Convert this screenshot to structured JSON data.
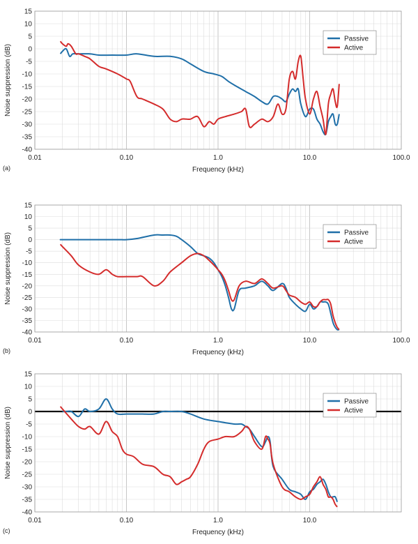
{
  "chart_data": [
    {
      "panel_label": "(a)",
      "type": "line",
      "xscale": "log",
      "xlabel": "Frequency (kHz)",
      "ylabel": "Noise suppression (dB)",
      "xlim": [
        0.01,
        100.0
      ],
      "ylim": [
        -40,
        15
      ],
      "xticks": [
        "0.01",
        "0.10",
        "1.0",
        "10.0",
        "100.0"
      ],
      "yticks": [
        "15",
        "10",
        "5",
        "0",
        "-5",
        "-10",
        "-15",
        "-20",
        "-25",
        "-30",
        "-35",
        "-40"
      ],
      "legend": {
        "position": "top-right",
        "entries": [
          "Passive",
          "Active"
        ]
      },
      "series": [
        {
          "name": "Passive",
          "color": "#1f6fa8",
          "x": [
            0.019,
            0.02,
            0.022,
            0.024,
            0.026,
            0.03,
            0.04,
            0.05,
            0.07,
            0.1,
            0.13,
            0.2,
            0.3,
            0.4,
            0.5,
            0.7,
            0.9,
            1.1,
            1.3,
            1.6,
            2.0,
            2.5,
            3.0,
            3.5,
            4.0,
            4.5,
            5.0,
            5.5,
            6.0,
            6.5,
            7.0,
            7.5,
            8.0,
            9.0,
            10.0,
            11.0,
            12.0,
            13.0,
            14.0,
            15.0,
            16.0,
            17.0,
            18.0,
            19.0,
            20.0,
            21.0
          ],
          "y": [
            -2,
            -1,
            0,
            -3,
            -2,
            -2,
            -2,
            -2.5,
            -2.5,
            -2.5,
            -2,
            -3,
            -3,
            -4,
            -6,
            -9,
            -10,
            -11,
            -13,
            -15,
            -17,
            -19,
            -21,
            -22,
            -19,
            -19,
            -20,
            -21,
            -18,
            -16,
            -17,
            -16,
            -22,
            -27,
            -24,
            -24,
            -28,
            -30,
            -33,
            -34,
            -29,
            -27,
            -26,
            -30,
            -30,
            -26
          ]
        },
        {
          "name": "Active",
          "color": "#d42b2b",
          "x": [
            0.019,
            0.02,
            0.022,
            0.023,
            0.025,
            0.028,
            0.03,
            0.035,
            0.04,
            0.05,
            0.06,
            0.08,
            0.1,
            0.11,
            0.13,
            0.15,
            0.2,
            0.25,
            0.3,
            0.35,
            0.4,
            0.45,
            0.5,
            0.6,
            0.7,
            0.8,
            0.9,
            1.0,
            1.2,
            1.5,
            1.8,
            2.0,
            2.2,
            2.5,
            3.0,
            3.5,
            4.0,
            4.5,
            5.0,
            5.5,
            6.0,
            6.5,
            7.0,
            7.5,
            8.0,
            8.5,
            9.0,
            10.0,
            11.0,
            12.0,
            13.0,
            14.0,
            15.0,
            16.0,
            17.0,
            18.0,
            19.0,
            20.0,
            21.0
          ],
          "y": [
            3,
            2,
            1,
            2,
            1,
            -2,
            -2,
            -3,
            -4,
            -7,
            -8,
            -10,
            -12,
            -13,
            -19,
            -20,
            -22,
            -24,
            -28,
            -29,
            -28,
            -28,
            -28,
            -27,
            -31,
            -29,
            -30,
            -28,
            -27,
            -26,
            -25,
            -24,
            -31,
            -30,
            -28,
            -29,
            -27,
            -22,
            -26,
            -24,
            -12,
            -9,
            -12,
            -5,
            -3,
            -12,
            -20,
            -26,
            -20,
            -17,
            -23,
            -28,
            -34,
            -22,
            -18,
            -16,
            -21,
            -23,
            -14
          ]
        }
      ]
    },
    {
      "panel_label": "(b)",
      "type": "line",
      "xscale": "log",
      "xlabel": "Frequency (kHz)",
      "ylabel": "Noise suppression (dB)",
      "xlim": [
        0.01,
        100.0
      ],
      "ylim": [
        -40,
        15
      ],
      "xticks": [
        "0.01",
        "0.10",
        "1.0",
        "10.0",
        "100.0"
      ],
      "yticks": [
        "15",
        "10",
        "5",
        "0",
        "-5",
        "-10",
        "-15",
        "-20",
        "-25",
        "-30",
        "-35",
        "-40"
      ],
      "legend": {
        "position": "top-right",
        "entries": [
          "Passive",
          "Active"
        ]
      },
      "series": [
        {
          "name": "Passive",
          "color": "#1f6fa8",
          "x": [
            0.019,
            0.02,
            0.03,
            0.05,
            0.08,
            0.1,
            0.13,
            0.2,
            0.25,
            0.3,
            0.35,
            0.4,
            0.5,
            0.6,
            0.7,
            0.8,
            0.9,
            1.0,
            1.1,
            1.2,
            1.3,
            1.4,
            1.5,
            1.7,
            2.0,
            2.5,
            3.0,
            3.5,
            4.0,
            5.0,
            5.5,
            6.0,
            7.0,
            8.0,
            9.0,
            10.0,
            11.0,
            12.0,
            13.0,
            14.0,
            15.0,
            16.0,
            17.0,
            18.0,
            19.0,
            20.0,
            21.0
          ],
          "y": [
            0,
            0,
            0,
            0,
            0,
            0,
            0.5,
            2,
            2,
            2,
            1.5,
            0,
            -3,
            -6,
            -7,
            -8,
            -10,
            -13,
            -16,
            -20,
            -25,
            -30,
            -30,
            -22,
            -21,
            -20,
            -18,
            -20,
            -22,
            -19,
            -21,
            -25,
            -28,
            -30,
            -31,
            -28,
            -30,
            -29,
            -27,
            -27,
            -27,
            -28,
            -32,
            -36,
            -38,
            -39,
            -39
          ]
        },
        {
          "name": "Active",
          "color": "#d42b2b",
          "x": [
            0.019,
            0.02,
            0.025,
            0.03,
            0.04,
            0.05,
            0.06,
            0.07,
            0.08,
            0.1,
            0.13,
            0.15,
            0.2,
            0.25,
            0.3,
            0.4,
            0.5,
            0.6,
            0.7,
            0.8,
            0.9,
            1.0,
            1.1,
            1.2,
            1.3,
            1.4,
            1.5,
            1.7,
            2.0,
            2.5,
            3.0,
            3.5,
            4.0,
            5.0,
            5.5,
            6.0,
            7.0,
            8.0,
            9.0,
            10.0,
            11.0,
            12.0,
            13.0,
            14.0,
            15.0,
            16.0,
            17.0,
            18.0,
            19.0,
            20.0,
            21.0
          ],
          "y": [
            -2,
            -3,
            -7,
            -11,
            -14,
            -15,
            -13,
            -15,
            -16,
            -16,
            -16,
            -16,
            -20,
            -18,
            -14,
            -10,
            -7,
            -6,
            -7,
            -9,
            -11,
            -13,
            -15,
            -18,
            -22,
            -26,
            -26,
            -20,
            -18,
            -19,
            -17,
            -19,
            -21,
            -20,
            -22,
            -24,
            -25,
            -27,
            -28,
            -27,
            -29,
            -29,
            -27,
            -26,
            -26,
            -26,
            -28,
            -33,
            -36,
            -38,
            -39
          ]
        }
      ]
    },
    {
      "panel_label": "(c)",
      "type": "line",
      "xscale": "log",
      "xlabel": "Frequency (kHz)",
      "ylabel": "Noise suppression (dB)",
      "xlim": [
        0.01,
        100.0
      ],
      "ylim": [
        -40,
        15
      ],
      "xticks": [
        "0.01",
        "0.10",
        "1.0",
        "10.0"
      ],
      "yticks": [
        "15",
        "10",
        "5",
        "0",
        "-5",
        "-10",
        "-15",
        "-20",
        "-25",
        "-30",
        "-35",
        "-40"
      ],
      "legend": {
        "position": "top-right",
        "entries": [
          "Passive",
          "Active"
        ]
      },
      "reference_line_y": 0,
      "series": [
        {
          "name": "Passive",
          "color": "#1f6fa8",
          "x": [
            0.02,
            0.022,
            0.025,
            0.03,
            0.035,
            0.04,
            0.05,
            0.06,
            0.07,
            0.08,
            0.1,
            0.13,
            0.15,
            0.2,
            0.25,
            0.3,
            0.4,
            0.5,
            0.7,
            1.0,
            1.5,
            1.8,
            2.0,
            2.2,
            2.5,
            3.0,
            3.3,
            3.5,
            3.7,
            4.0,
            5.0,
            6.0,
            7.0,
            8.0,
            9.0,
            10.0,
            11.0,
            12.0,
            13.0,
            14.0,
            15.0,
            16.0,
            17.0,
            18.0,
            19.0,
            20.0
          ],
          "y": [
            0,
            0,
            0,
            -2,
            1,
            0,
            1,
            5,
            1,
            -1,
            -1,
            -1,
            -1,
            -1,
            0,
            0,
            0,
            -1,
            -3,
            -4,
            -5,
            -5,
            -6,
            -7,
            -10,
            -14,
            -12,
            -10,
            -12,
            -22,
            -27,
            -31,
            -32,
            -33,
            -35,
            -32,
            -31,
            -29,
            -28,
            -27,
            -29,
            -32,
            -34,
            -34,
            -34,
            -36
          ]
        },
        {
          "name": "Active",
          "color": "#d42b2b",
          "x": [
            0.019,
            0.02,
            0.025,
            0.03,
            0.035,
            0.04,
            0.05,
            0.06,
            0.07,
            0.08,
            0.09,
            0.1,
            0.12,
            0.15,
            0.2,
            0.25,
            0.3,
            0.35,
            0.4,
            0.45,
            0.5,
            0.6,
            0.7,
            0.8,
            1.0,
            1.2,
            1.5,
            1.8,
            2.0,
            2.2,
            2.5,
            3.0,
            3.3,
            3.5,
            3.7,
            4.0,
            5.0,
            6.0,
            7.0,
            8.0,
            9.0,
            10.0,
            11.0,
            12.0,
            13.0,
            14.0,
            15.0,
            16.0,
            17.0,
            18.0,
            19.0,
            20.0
          ],
          "y": [
            2,
            1,
            -3,
            -6,
            -7,
            -6,
            -9,
            -4,
            -8,
            -10,
            -15,
            -17,
            -18,
            -21,
            -22,
            -25,
            -26,
            -29,
            -28,
            -27,
            -26,
            -21,
            -15,
            -12,
            -11,
            -10,
            -10,
            -8,
            -6,
            -7,
            -12,
            -15,
            -10,
            -11,
            -13,
            -21,
            -30,
            -32,
            -34,
            -35,
            -34,
            -33,
            -30,
            -28,
            -26,
            -29,
            -31,
            -34,
            -34,
            -35,
            -37,
            -38
          ]
        }
      ]
    }
  ]
}
